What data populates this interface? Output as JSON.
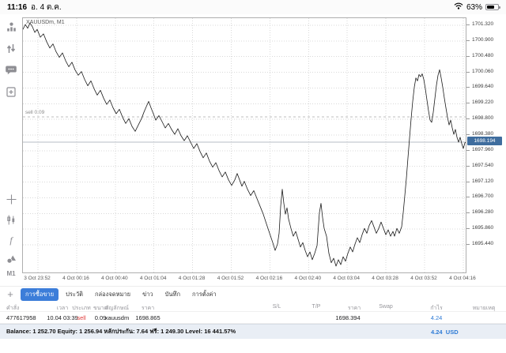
{
  "colors": {
    "accent_blue": "#3c7dd9",
    "sell_red": "#e03b3b",
    "profit_blue": "#2e7bd6",
    "price_tag_bg": "#3f6d9e",
    "chart_line": "#1b1b1b"
  },
  "status_bar": {
    "time": "11:16",
    "date": "อ. 4 ต.ค.",
    "battery_percent": "63%"
  },
  "sidebar": {
    "top_icons": [
      "quotes-icon",
      "trade-icon",
      "chat-icon",
      "new-order-icon"
    ],
    "tool_icons": [
      "crosshair-icon",
      "chart-type-icon",
      "indicators-icon",
      "objects-icon"
    ],
    "timeframe_label": "M1"
  },
  "chart": {
    "symbol_label": "XAUUSDm, M1",
    "sell_label": "sell 0.09",
    "current_price_label": "1698.194"
  },
  "chart_data": {
    "type": "line",
    "title": "XAUUSDm, M1",
    "symbol": "XAUUSDm",
    "timeframe": "M1",
    "ylim": [
      1694.7,
      1701.51
    ],
    "price_ticks": [
      "1701.320",
      "1700.900",
      "1700.480",
      "1700.060",
      "1699.640",
      "1699.220",
      "1698.800",
      "1698.380",
      "1697.960",
      "1697.540",
      "1697.120",
      "1696.700",
      "1696.280",
      "1695.860",
      "1695.440"
    ],
    "time_ticks": [
      "3 Oct 23:52",
      "4 Oct 00:16",
      "4 Oct 00:40",
      "4 Oct 01:04",
      "4 Oct 01:28",
      "4 Oct 01:52",
      "4 Oct 02:16",
      "4 Oct 02:40",
      "4 Oct 03:04",
      "4 Oct 03:28",
      "4 Oct 03:52",
      "4 Oct 04:16"
    ],
    "axis": {
      "first_tick_x": 19,
      "tick_spacing": 48.9
    },
    "current_price": 1698.194,
    "sell_line": {
      "label": "sell 0.09",
      "price": 1698.865
    },
    "series": [
      [
        0,
        1701.21
      ],
      [
        3,
        1701.34
      ],
      [
        6,
        1701.24
      ],
      [
        9,
        1701.38
      ],
      [
        12,
        1701.28
      ],
      [
        15,
        1701.13
      ],
      [
        18,
        1701.21
      ],
      [
        22,
        1701.0
      ],
      [
        26,
        1701.09
      ],
      [
        30,
        1700.88
      ],
      [
        34,
        1700.71
      ],
      [
        38,
        1700.82
      ],
      [
        42,
        1700.61
      ],
      [
        46,
        1700.46
      ],
      [
        50,
        1700.58
      ],
      [
        54,
        1700.37
      ],
      [
        58,
        1700.21
      ],
      [
        62,
        1700.33
      ],
      [
        66,
        1700.12
      ],
      [
        70,
        1699.98
      ],
      [
        74,
        1700.08
      ],
      [
        78,
        1699.87
      ],
      [
        82,
        1699.7
      ],
      [
        86,
        1699.83
      ],
      [
        90,
        1699.62
      ],
      [
        94,
        1699.45
      ],
      [
        98,
        1699.58
      ],
      [
        102,
        1699.37
      ],
      [
        106,
        1699.2
      ],
      [
        110,
        1699.32
      ],
      [
        114,
        1699.11
      ],
      [
        118,
        1698.95
      ],
      [
        122,
        1699.07
      ],
      [
        126,
        1698.86
      ],
      [
        130,
        1698.69
      ],
      [
        134,
        1698.82
      ],
      [
        138,
        1698.61
      ],
      [
        142,
        1698.48
      ],
      [
        146,
        1698.65
      ],
      [
        150,
        1698.82
      ],
      [
        153,
        1698.99
      ],
      [
        156,
        1699.14
      ],
      [
        159,
        1699.28
      ],
      [
        162,
        1699.11
      ],
      [
        165,
        1698.95
      ],
      [
        168,
        1698.78
      ],
      [
        172,
        1698.9
      ],
      [
        176,
        1698.74
      ],
      [
        180,
        1698.57
      ],
      [
        184,
        1698.69
      ],
      [
        188,
        1698.53
      ],
      [
        192,
        1698.4
      ],
      [
        196,
        1698.55
      ],
      [
        200,
        1698.36
      ],
      [
        204,
        1698.23
      ],
      [
        208,
        1698.36
      ],
      [
        212,
        1698.19
      ],
      [
        216,
        1698.02
      ],
      [
        220,
        1698.15
      ],
      [
        224,
        1697.94
      ],
      [
        228,
        1697.77
      ],
      [
        232,
        1697.9
      ],
      [
        236,
        1697.68
      ],
      [
        240,
        1697.52
      ],
      [
        244,
        1697.64
      ],
      [
        248,
        1697.43
      ],
      [
        252,
        1697.26
      ],
      [
        256,
        1697.39
      ],
      [
        260,
        1697.18
      ],
      [
        264,
        1697.03
      ],
      [
        268,
        1697.18
      ],
      [
        271,
        1697.35
      ],
      [
        274,
        1697.18
      ],
      [
        277,
        1697.01
      ],
      [
        280,
        1697.14
      ],
      [
        284,
        1696.93
      ],
      [
        288,
        1696.76
      ],
      [
        292,
        1696.89
      ],
      [
        296,
        1696.68
      ],
      [
        300,
        1696.47
      ],
      [
        304,
        1696.26
      ],
      [
        308,
        1696.0
      ],
      [
        312,
        1695.75
      ],
      [
        316,
        1695.5
      ],
      [
        319,
        1695.29
      ],
      [
        322,
        1695.46
      ],
      [
        324,
        1695.75
      ],
      [
        326,
        1696.47
      ],
      [
        328,
        1696.93
      ],
      [
        330,
        1696.55
      ],
      [
        332,
        1696.26
      ],
      [
        334,
        1696.43
      ],
      [
        336,
        1696.13
      ],
      [
        339,
        1695.88
      ],
      [
        342,
        1695.67
      ],
      [
        345,
        1695.8
      ],
      [
        348,
        1695.59
      ],
      [
        351,
        1695.38
      ],
      [
        354,
        1695.5
      ],
      [
        357,
        1695.29
      ],
      [
        360,
        1695.12
      ],
      [
        363,
        1695.25
      ],
      [
        366,
        1695.04
      ],
      [
        369,
        1695.21
      ],
      [
        372,
        1695.42
      ],
      [
        375,
        1696.3
      ],
      [
        377,
        1696.55
      ],
      [
        379,
        1696.17
      ],
      [
        381,
        1695.88
      ],
      [
        384,
        1695.67
      ],
      [
        387,
        1695.21
      ],
      [
        390,
        1694.96
      ],
      [
        393,
        1695.08
      ],
      [
        396,
        1694.87
      ],
      [
        399,
        1695.04
      ],
      [
        402,
        1694.91
      ],
      [
        405,
        1695.12
      ],
      [
        408,
        1695.0
      ],
      [
        411,
        1695.21
      ],
      [
        414,
        1695.38
      ],
      [
        417,
        1695.25
      ],
      [
        420,
        1695.46
      ],
      [
        423,
        1695.63
      ],
      [
        426,
        1695.5
      ],
      [
        429,
        1695.71
      ],
      [
        432,
        1695.88
      ],
      [
        435,
        1695.75
      ],
      [
        438,
        1695.96
      ],
      [
        441,
        1696.09
      ],
      [
        444,
        1695.92
      ],
      [
        447,
        1695.75
      ],
      [
        450,
        1695.88
      ],
      [
        453,
        1696.05
      ],
      [
        456,
        1695.88
      ],
      [
        459,
        1695.71
      ],
      [
        462,
        1695.84
      ],
      [
        465,
        1695.67
      ],
      [
        468,
        1695.8
      ],
      [
        470,
        1695.67
      ],
      [
        473,
        1695.88
      ],
      [
        476,
        1695.75
      ],
      [
        479,
        1695.92
      ],
      [
        481,
        1696.3
      ],
      [
        483,
        1696.76
      ],
      [
        485,
        1697.22
      ],
      [
        487,
        1697.77
      ],
      [
        489,
        1698.3
      ],
      [
        491,
        1698.82
      ],
      [
        493,
        1699.28
      ],
      [
        495,
        1699.66
      ],
      [
        497,
        1699.91
      ],
      [
        499,
        1699.83
      ],
      [
        501,
        1700.0
      ],
      [
        503,
        1699.94
      ],
      [
        505,
        1700.02
      ],
      [
        507,
        1699.87
      ],
      [
        509,
        1699.62
      ],
      [
        511,
        1699.32
      ],
      [
        513,
        1699.03
      ],
      [
        515,
        1698.78
      ],
      [
        517,
        1698.72
      ],
      [
        519,
        1698.99
      ],
      [
        521,
        1699.35
      ],
      [
        523,
        1699.71
      ],
      [
        525,
        1699.98
      ],
      [
        527,
        1700.13
      ],
      [
        529,
        1699.91
      ],
      [
        531,
        1699.66
      ],
      [
        533,
        1699.37
      ],
      [
        535,
        1699.11
      ],
      [
        537,
        1698.86
      ],
      [
        539,
        1698.65
      ],
      [
        541,
        1698.78
      ],
      [
        543,
        1698.57
      ],
      [
        545,
        1698.4
      ],
      [
        547,
        1698.53
      ],
      [
        549,
        1698.32
      ],
      [
        551,
        1698.19
      ],
      [
        553,
        1698.32
      ],
      [
        555,
        1698.15
      ],
      [
        557,
        1698.02
      ],
      [
        559,
        1698.17
      ],
      [
        561,
        1698.19
      ]
    ]
  },
  "tabs": {
    "add_label": "+",
    "items": [
      {
        "name": "trade",
        "label": "การซื้อขาย",
        "selected": true
      },
      {
        "name": "history",
        "label": "ประวัติ",
        "selected": false
      },
      {
        "name": "mailbox",
        "label": "กล่องจดหมาย",
        "selected": false
      },
      {
        "name": "news",
        "label": "ข่าว",
        "selected": false
      },
      {
        "name": "journal",
        "label": "บันทึก",
        "selected": false
      },
      {
        "name": "settings",
        "label": "การตั้งค่า",
        "selected": false
      }
    ]
  },
  "table": {
    "columns": [
      {
        "key": "order",
        "header": "คำสั่ง",
        "value": "477617958"
      },
      {
        "key": "time",
        "header": "เวลา",
        "value": "10.04 03:39"
      },
      {
        "key": "type",
        "header": "ประเภท",
        "value": "sell"
      },
      {
        "key": "volume",
        "header": "ขนาด",
        "value": "0.09"
      },
      {
        "key": "symbol",
        "header": "สัญลักษณ์",
        "value": "xauusdm"
      },
      {
        "key": "open_price",
        "header": "ราคา",
        "value": "1698.865"
      },
      {
        "key": "sl",
        "header": "S/L",
        "value": ""
      },
      {
        "key": "tp",
        "header": "T/P",
        "value": ""
      },
      {
        "key": "price",
        "header": "ราคา",
        "value": "1698.394"
      },
      {
        "key": "swap",
        "header": "Swap",
        "value": ""
      },
      {
        "key": "profit",
        "header": "กำไร",
        "value": "4.24"
      },
      {
        "key": "comment",
        "header": "หมายเหตุ",
        "value": ""
      }
    ]
  },
  "account_bar": {
    "summary": "Balance: 1 252.70 Equity: 1 256.94 หลักประกัน: 7.64 ฟรี: 1 249.30 Level: 16 441.57%",
    "profit": "4.24",
    "currency": "USD"
  }
}
